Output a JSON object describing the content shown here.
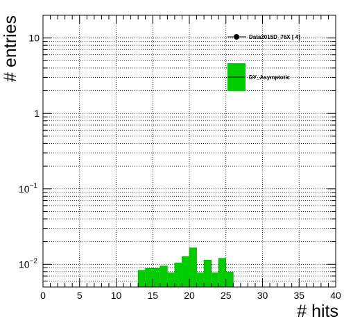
{
  "chart_data": {
    "type": "bar",
    "xlabel": "# hits",
    "ylabel": "# entries",
    "xlim": [
      0,
      40
    ],
    "ylim": [
      0.005,
      20
    ],
    "y_scale": "log",
    "grid": true,
    "legend_position": "top-right",
    "x_ticks": [
      0,
      5,
      10,
      15,
      20,
      25,
      30,
      35,
      40
    ],
    "x_tick_labels": [
      "0",
      "5",
      "10",
      "15",
      "20",
      "25",
      "30",
      "35",
      "40"
    ],
    "y_ticks": [
      0.01,
      0.1,
      1,
      10
    ],
    "y_tick_labels": [
      {
        "base": "10",
        "exp": "−2"
      },
      {
        "base": "10",
        "exp": "−1"
      },
      {
        "base": "1",
        "exp": ""
      },
      {
        "base": "10",
        "exp": ""
      }
    ],
    "series": [
      {
        "name": "Data2015D_76X [        4]",
        "kind": "points",
        "color": "#000000",
        "points": []
      },
      {
        "name": "DY_Asymptotic",
        "kind": "histogram",
        "color": "#00cc00",
        "bin_width": 1,
        "bins": [
          {
            "x": 13,
            "y": 0.0083
          },
          {
            "x": 14,
            "y": 0.0088
          },
          {
            "x": 15,
            "y": 0.0088
          },
          {
            "x": 16,
            "y": 0.0095
          },
          {
            "x": 17,
            "y": 0.0077
          },
          {
            "x": 18,
            "y": 0.0104
          },
          {
            "x": 19,
            "y": 0.0127
          },
          {
            "x": 20,
            "y": 0.0165
          },
          {
            "x": 21,
            "y": 0.0077
          },
          {
            "x": 22,
            "y": 0.0114
          },
          {
            "x": 23,
            "y": 0.0077
          },
          {
            "x": 24,
            "y": 0.012
          },
          {
            "x": 25,
            "y": 0.0079
          }
        ]
      }
    ]
  }
}
